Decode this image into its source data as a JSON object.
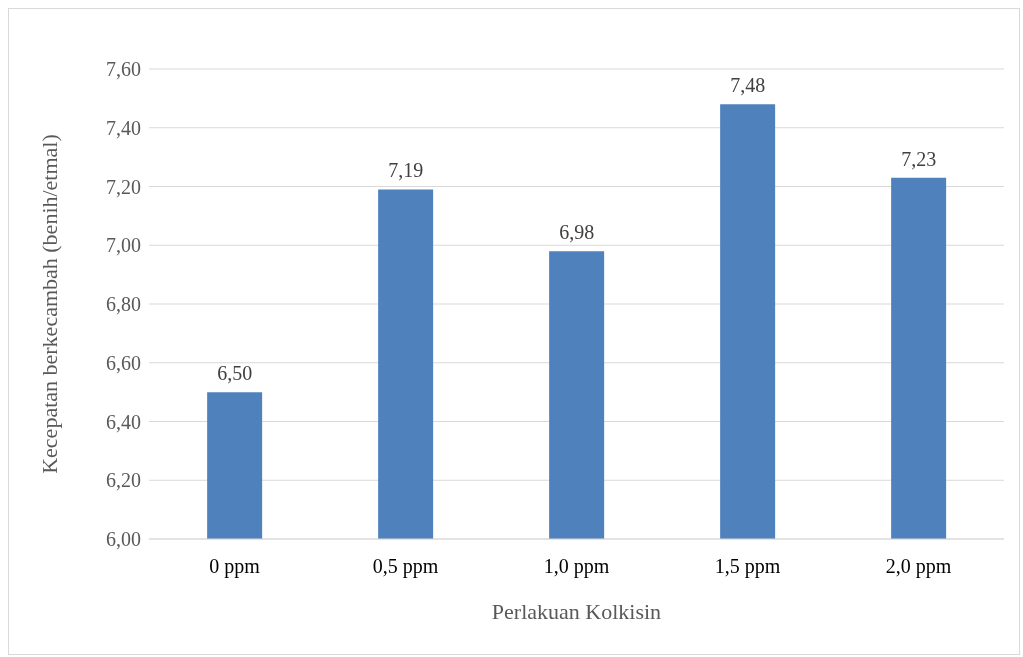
{
  "chart_data": {
    "type": "bar",
    "xlabel": "Perlakuan Kolkisin",
    "ylabel": "Kecepatan berkecambah  (benih/etmal)",
    "categories": [
      "0 ppm",
      "0,5 ppm",
      "1,0 ppm",
      "1,5 ppm",
      "2,0 ppm"
    ],
    "values": [
      6.5,
      7.19,
      6.98,
      7.48,
      7.23
    ],
    "value_labels": [
      "6,50",
      "7,19",
      "6,98",
      "7,48",
      "7,23"
    ],
    "color": "#4f81bd",
    "ylim": [
      6,
      7.6
    ],
    "yticks": [
      {
        "value": 6,
        "label": "6,00"
      },
      {
        "value": 6.2,
        "label": "6,20"
      },
      {
        "value": 6.4,
        "label": "6,40"
      },
      {
        "value": 6.6,
        "label": "6,60"
      },
      {
        "value": 6.8,
        "label": "6,80"
      },
      {
        "value": 7,
        "label": "7,00"
      },
      {
        "value": 7.2,
        "label": "7,20"
      },
      {
        "value": 7.4,
        "label": "7,40"
      },
      {
        "value": 7.6,
        "label": "7,60"
      }
    ],
    "grid": "y",
    "legend": false
  }
}
